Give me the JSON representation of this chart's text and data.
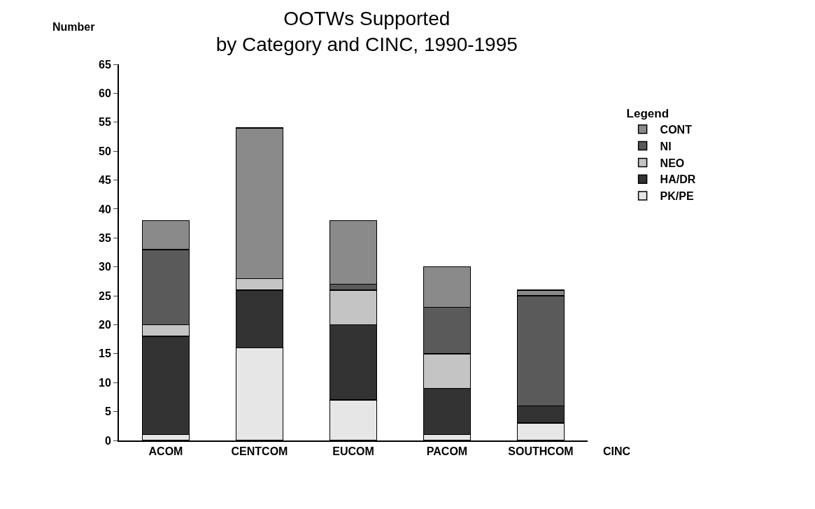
{
  "chart_data": {
    "type": "bar",
    "title": "OOTWs Supported",
    "subtitle": "by Category and CINC, 1990-1995",
    "ylabel": "Number",
    "xlabel": "CINC",
    "legend_title": "Legend",
    "categories": [
      "ACOM",
      "CENTCOM",
      "EUCOM",
      "PACOM",
      "SOUTHCOM"
    ],
    "stacked": true,
    "ylim": [
      0,
      65
    ],
    "yticks": [
      0,
      5,
      10,
      15,
      20,
      25,
      30,
      35,
      40,
      45,
      50,
      55,
      60,
      65
    ],
    "grid": false,
    "legend": "right",
    "series": [
      {
        "name": "PK/PE",
        "color": "#e6e6e6",
        "values": [
          1,
          16,
          7,
          1,
          3
        ]
      },
      {
        "name": "HA/DR",
        "color": "#333333",
        "values": [
          17,
          10,
          13,
          8,
          3
        ]
      },
      {
        "name": "NEO",
        "color": "#c4c4c4",
        "values": [
          2,
          2,
          6,
          6,
          0
        ]
      },
      {
        "name": "NI",
        "color": "#5a5a5a",
        "values": [
          13,
          0,
          1,
          8,
          19
        ]
      },
      {
        "name": "CONT",
        "color": "#8a8a8a",
        "values": [
          5,
          26,
          11,
          7,
          1
        ]
      }
    ]
  }
}
